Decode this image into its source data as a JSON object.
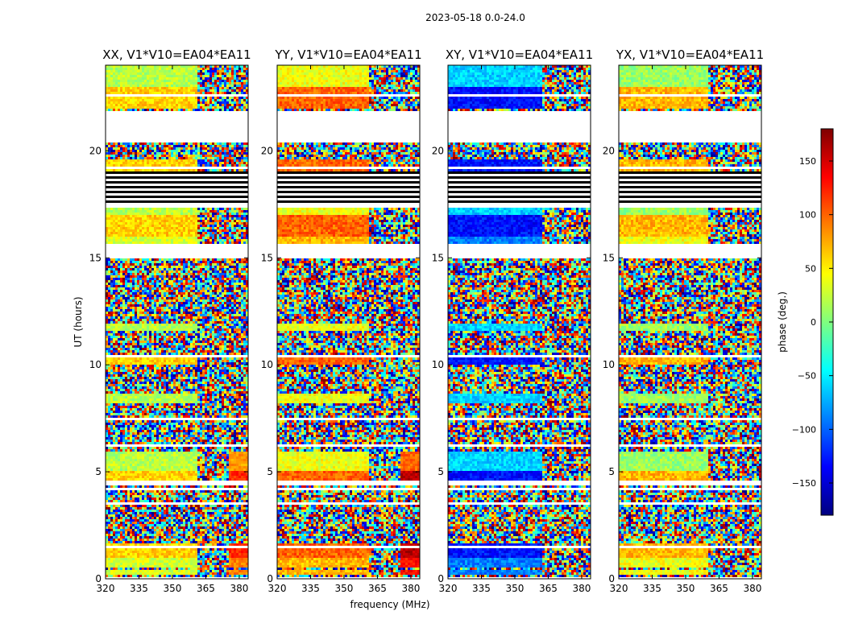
{
  "chart_data": {
    "type": "heatmap",
    "suptitle": "2023-05-18 0.0-24.0",
    "ylabel": "UT (hours)",
    "xlabel": "frequency (MHz)",
    "xlim": [
      320,
      384
    ],
    "ylim": [
      0,
      24
    ],
    "xticks": [
      320,
      335,
      350,
      365,
      380
    ],
    "yticks": [
      0,
      5,
      10,
      15,
      20
    ],
    "panels": [
      {
        "title": "XX, V1*V10=EA04*EA11",
        "cal_phase_deg": [
          30,
          60,
          20
        ],
        "band_break_mhz": 361,
        "rfi_block": true
      },
      {
        "title": "YY, V1*V10=EA04*EA11",
        "cal_phase_deg": [
          70,
          100,
          40
        ],
        "band_break_mhz": 361,
        "rfi_block": true
      },
      {
        "title": "XY, V1*V10=EA04*EA11",
        "cal_phase_deg": [
          -90,
          -130,
          -60
        ],
        "band_break_mhz": 362,
        "rfi_block": false
      },
      {
        "title": "YX, V1*V10=EA04*EA11",
        "cal_phase_deg": [
          40,
          70,
          10
        ],
        "band_break_mhz": 360,
        "rfi_block": false
      }
    ],
    "calibrator_scans_hours": [
      [
        0.2,
        0.4
      ],
      [
        0.5,
        1.4
      ],
      [
        1.5,
        1.6
      ],
      [
        4.6,
        5.9
      ],
      [
        8.2,
        8.6
      ],
      [
        10.0,
        10.5
      ],
      [
        11.6,
        11.9
      ],
      [
        15.6,
        17.3
      ],
      [
        18.8,
        19.6
      ],
      [
        22.0,
        24.0
      ]
    ],
    "gaps_hours": [
      [
        0.0,
        0.1
      ],
      [
        1.4,
        1.5
      ],
      [
        3.5,
        3.6
      ],
      [
        4.1,
        4.2
      ],
      [
        4.4,
        4.6
      ],
      [
        6.2,
        6.3
      ],
      [
        7.4,
        7.5
      ],
      [
        10.4,
        10.45
      ],
      [
        11.1,
        11.15
      ],
      [
        13.7,
        13.75
      ],
      [
        15.0,
        15.6
      ],
      [
        17.3,
        17.5
      ],
      [
        19.2,
        19.3
      ],
      [
        20.4,
        21.9
      ],
      [
        22.5,
        22.6
      ]
    ],
    "flagged_black_hours": [
      [
        17.5,
        19.0
      ]
    ],
    "colorbar": {
      "label": "phase (deg.)",
      "range": [
        -180,
        180
      ],
      "ticks": [
        -150,
        -100,
        -50,
        0,
        50,
        100,
        150
      ],
      "tick_labels": [
        "−150",
        "−100",
        "−50",
        "0",
        "50",
        "100",
        "150"
      ],
      "colormap": [
        "#00007f",
        "#0000ff",
        "#007fff",
        "#00ffff",
        "#7fff7f",
        "#ffff00",
        "#ff7f00",
        "#ff0000",
        "#7f0000"
      ]
    }
  }
}
